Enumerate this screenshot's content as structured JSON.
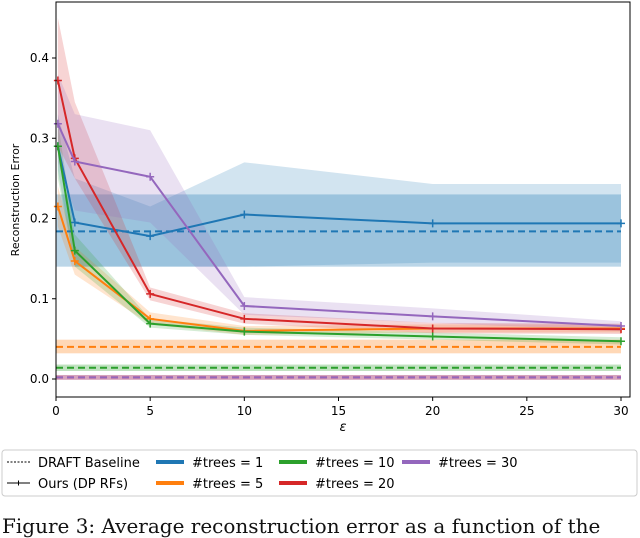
{
  "chart_data": {
    "type": "line",
    "xlabel": "ε",
    "ylabel": "Reconstruction Error",
    "xlim": [
      0,
      30
    ],
    "ylim": [
      -0.025,
      0.465
    ],
    "x_ticks": [
      "0",
      "5",
      "10",
      "15",
      "20",
      "25",
      "30"
    ],
    "y_ticks": [
      "0.0",
      "0.1",
      "0.2",
      "0.3",
      "0.4"
    ],
    "grid": false,
    "legend_placement": "below",
    "legend": {
      "style_entries": [
        {
          "label": "DRAFT Baseline",
          "style": "dashed"
        },
        {
          "label": "Ours (DP RFs)",
          "style": "solid-plus-marker"
        }
      ]
    },
    "x": [
      0.1,
      1,
      5,
      10,
      20,
      30
    ],
    "series": [
      {
        "name": "#trees = 1",
        "color": "#1f77b4",
        "values": [
          0.29,
          0.195,
          0.178,
          0.205,
          0.194,
          0.194
        ],
        "lower": [
          0.26,
          0.14,
          0.14,
          0.14,
          0.145,
          0.145
        ],
        "upper": [
          0.33,
          0.25,
          0.215,
          0.27,
          0.243,
          0.243
        ],
        "baseline": 0.184,
        "baseline_band": [
          0.14,
          0.23
        ]
      },
      {
        "name": "#trees = 5",
        "color": "#ff7f0e",
        "values": [
          0.215,
          0.147,
          0.075,
          0.06,
          0.063,
          0.063
        ],
        "lower": [
          0.19,
          0.13,
          0.068,
          0.055,
          0.058,
          0.058
        ],
        "upper": [
          0.24,
          0.165,
          0.083,
          0.066,
          0.068,
          0.068
        ],
        "baseline": 0.04,
        "baseline_band": [
          0.032,
          0.049
        ]
      },
      {
        "name": "#trees = 10",
        "color": "#2ca02c",
        "values": [
          0.29,
          0.16,
          0.069,
          0.059,
          0.053,
          0.047
        ],
        "lower": [
          0.25,
          0.14,
          0.064,
          0.055,
          0.049,
          0.043
        ],
        "upper": [
          0.32,
          0.18,
          0.075,
          0.064,
          0.058,
          0.052
        ],
        "baseline": 0.014,
        "baseline_band": [
          0.01,
          0.018
        ]
      },
      {
        "name": "#trees = 20",
        "color": "#d62728",
        "values": [
          0.372,
          0.275,
          0.106,
          0.075,
          0.063,
          0.062
        ],
        "lower": [
          0.29,
          0.25,
          0.098,
          0.069,
          0.057,
          0.056
        ],
        "upper": [
          0.45,
          0.345,
          0.114,
          0.082,
          0.07,
          0.069
        ],
        "baseline": 0.002,
        "baseline_band": [
          -0.001,
          0.005
        ]
      },
      {
        "name": "#trees = 30",
        "color": "#9467bd",
        "values": [
          0.318,
          0.271,
          0.252,
          0.091,
          0.078,
          0.066
        ],
        "lower": [
          0.27,
          0.21,
          0.195,
          0.08,
          0.07,
          0.06
        ],
        "upper": [
          0.38,
          0.33,
          0.31,
          0.102,
          0.088,
          0.072
        ],
        "baseline": 0.002,
        "baseline_band": [
          -0.001,
          0.005
        ]
      }
    ]
  },
  "caption": "Figure 3: Average reconstruction error as a function of the"
}
